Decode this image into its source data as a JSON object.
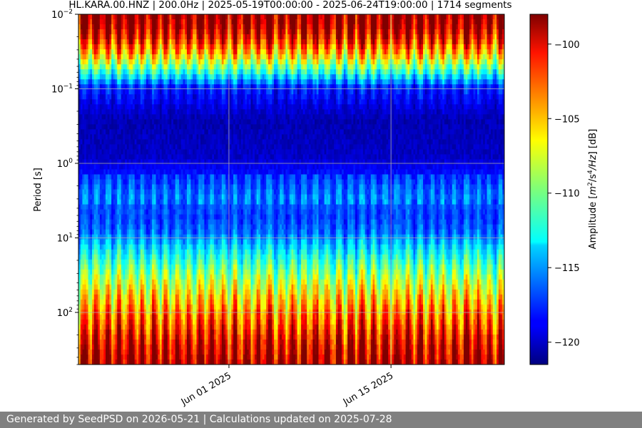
{
  "chart_data": {
    "type": "heatmap",
    "title": "HL.KARA.00.HNZ | 200.0Hz | 2025-05-19T00:00:00 - 2025-06-24T19:00:00 | 1714 segments",
    "xlabel": "",
    "ylabel": "Period [s]",
    "x_range": [
      "2025-05-19T00:00:00",
      "2025-06-24T19:00:00"
    ],
    "x_ticks": [
      {
        "date": "2025-06-01",
        "label": "Jun 01 2025"
      },
      {
        "date": "2025-06-15",
        "label": "Jun 15 2025"
      }
    ],
    "y_scale": "log",
    "y_inverted": true,
    "y_range": [
      0.01,
      500
    ],
    "y_ticks": [
      {
        "value": 0.01,
        "base": "10",
        "exp": "−2"
      },
      {
        "value": 0.1,
        "base": "10",
        "exp": "−1"
      },
      {
        "value": 1,
        "base": "10",
        "exp": "0"
      },
      {
        "value": 10,
        "base": "10",
        "exp": "1"
      },
      {
        "value": 100,
        "base": "10",
        "exp": "2"
      }
    ],
    "grid": true,
    "colormap": "jet",
    "colorbar": {
      "label_prefix": "Amplitude [",
      "label_math": "m",
      "label_sup1": "2",
      "label_mid": "/s",
      "label_sup2": "4",
      "label_end": "/Hz",
      "label_suffix": "] [dB]",
      "range": [
        -121.5,
        -98
      ],
      "ticks": [
        {
          "value": -100,
          "label": "−100"
        },
        {
          "value": -105,
          "label": "−105"
        },
        {
          "value": -110,
          "label": "−110"
        },
        {
          "value": -115,
          "label": "−115"
        },
        {
          "value": -120,
          "label": "−120"
        }
      ]
    },
    "segments": 1714
  },
  "footer": {
    "text": "Generated by SeedPSD on 2026-05-21 | Calculations updated on 2025-07-28"
  }
}
